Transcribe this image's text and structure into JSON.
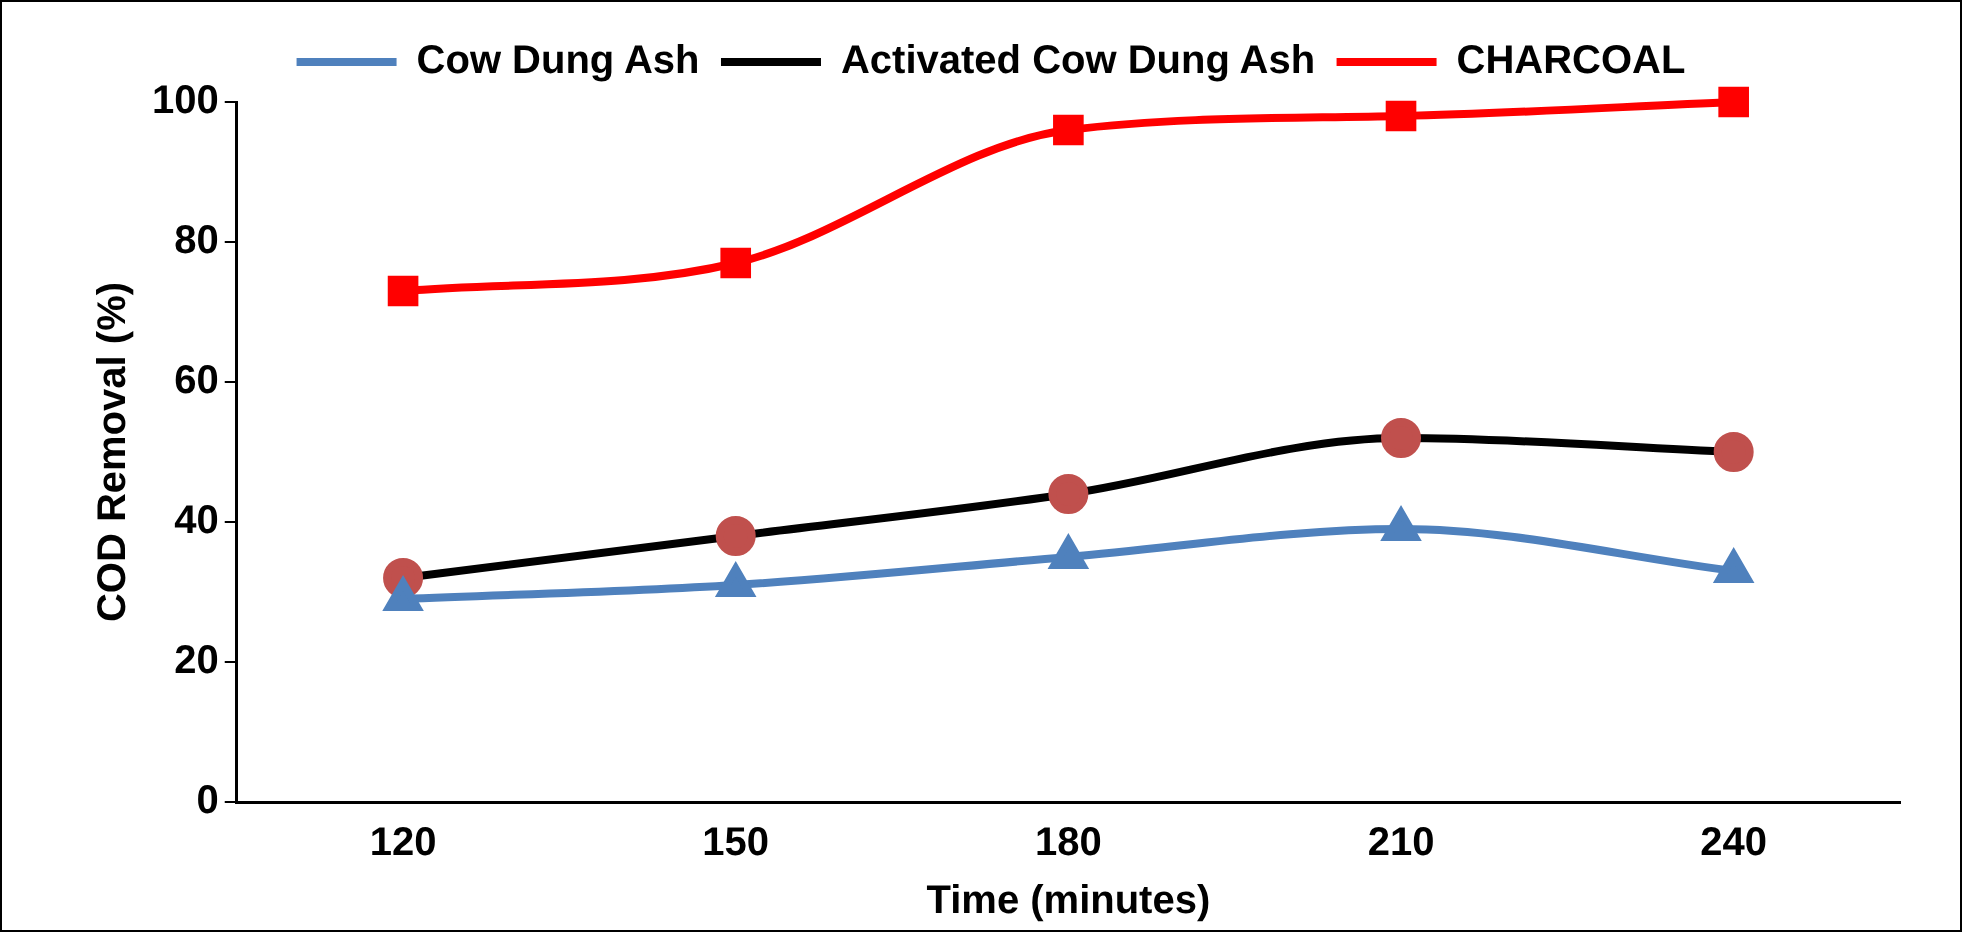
{
  "chart_data": {
    "type": "line",
    "xlabel": "Time (minutes)",
    "ylabel": "COD Removal (%)",
    "categories": [
      "120",
      "150",
      "180",
      "210",
      "240"
    ],
    "ylim": [
      0,
      100
    ],
    "yticks": [
      0,
      20,
      40,
      60,
      80,
      100
    ],
    "grid": false,
    "legend": "top",
    "series": [
      {
        "name": "Cow Dung Ash",
        "color": "#4f81bd",
        "marker": "triangle",
        "values": [
          29,
          31,
          35,
          39,
          33
        ]
      },
      {
        "name": "Activated Cow Dung Ash",
        "color": "#000000",
        "colors": [
          "#c0504d",
          "#c0504d",
          "#c0504d",
          "#c0504d",
          "#c0504d"
        ],
        "marker": "circle",
        "values": [
          32,
          38,
          44,
          52,
          50
        ]
      },
      {
        "name": "CHARCOAL",
        "color": "#ff0000",
        "marker": "square",
        "values": [
          73,
          77,
          96,
          98,
          100
        ]
      }
    ]
  }
}
